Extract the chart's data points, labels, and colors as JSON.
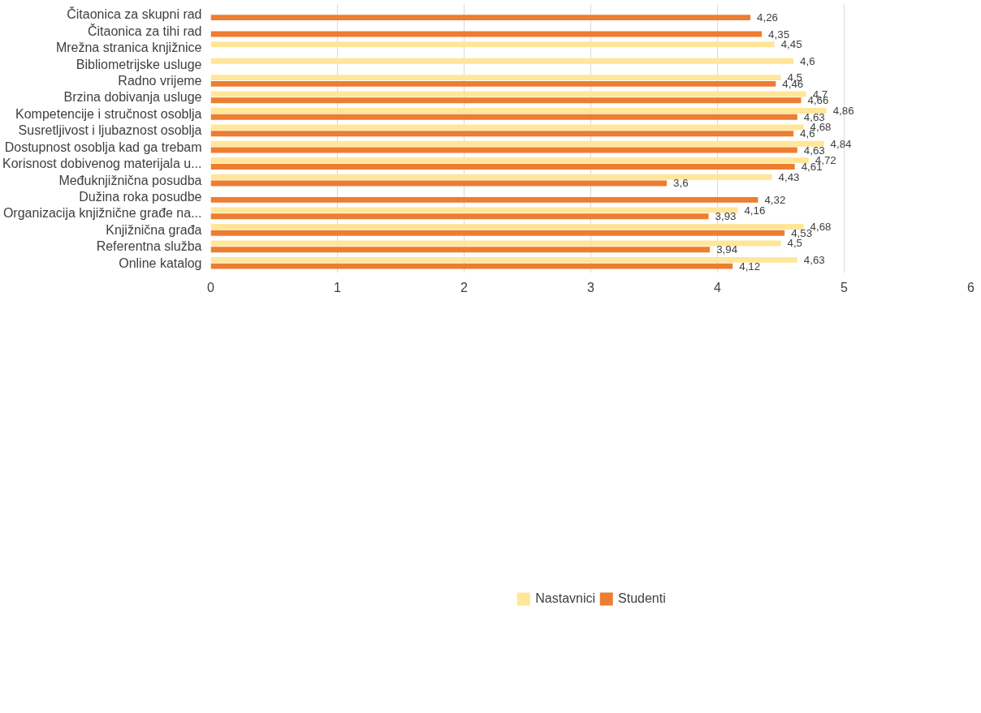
{
  "chart_data": {
    "type": "bar",
    "orientation": "horizontal",
    "categories": [
      "Čitaonica za skupni rad",
      "Čitaonica za tihi rad",
      "Mrežna stranica knjižnice",
      "Bibliometrijske usluge",
      "Radno vrijeme",
      "Brzina dobivanja usluge",
      "Kompetencije i stručnost osoblja",
      "Susretljivost i ljubaznost osoblja",
      "Dostupnost osoblja kad ga trebam",
      "Korisnost dobivenog materijala u...",
      "Međuknjižnična posudba",
      "Dužina roka posudbe",
      "Organizacija knjižnične građe na...",
      "Knjižnična građa",
      "Referentna služba",
      "Online katalog"
    ],
    "series": [
      {
        "name": "Nastavnici",
        "color": "#ffe699",
        "values": [
          null,
          null,
          4.45,
          4.6,
          4.5,
          4.7,
          4.86,
          4.68,
          4.84,
          4.72,
          4.43,
          null,
          4.16,
          4.68,
          4.5,
          4.63
        ],
        "value_labels": [
          null,
          null,
          "4,45",
          "4,6",
          "4,5",
          "4,7",
          "4,86",
          "4,68",
          "4,84",
          "4,72",
          "4,43",
          null,
          "4,16",
          "4,68",
          "4,5",
          "4,63"
        ]
      },
      {
        "name": "Studenti",
        "color": "#ed7d31",
        "values": [
          4.26,
          4.35,
          null,
          null,
          4.46,
          4.66,
          4.63,
          4.6,
          4.63,
          4.61,
          3.6,
          4.32,
          3.93,
          4.53,
          3.94,
          4.12
        ],
        "value_labels": [
          "4,26",
          "4,35",
          null,
          null,
          "4,46",
          "4,66",
          "4,63",
          "4,6",
          "4,63",
          "4,61",
          "3,6",
          "4,32",
          "3,93",
          "4,53",
          "3,94",
          "4,12"
        ]
      }
    ],
    "xlim": [
      0,
      6
    ],
    "xticks": [
      0,
      1,
      2,
      3,
      4,
      5,
      6
    ],
    "grid": "x",
    "legend": "bottom"
  }
}
